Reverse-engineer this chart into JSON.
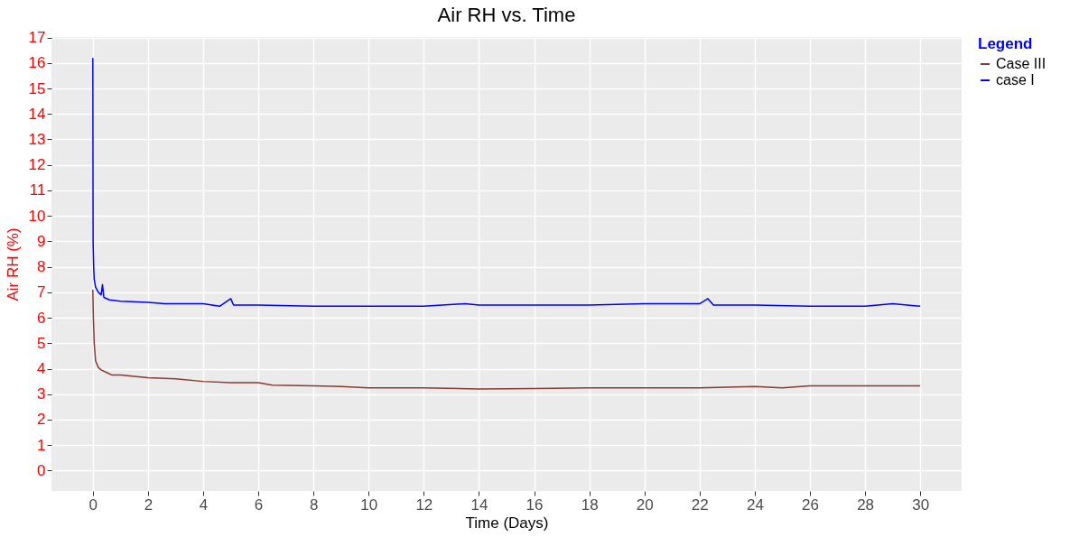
{
  "chart_data": {
    "type": "line",
    "title": "Air RH vs. Time",
    "xlabel": "Time (Days)",
    "ylabel": "Air RH (%)",
    "legend_title": "Legend",
    "xlim": [
      -1.5,
      31.5
    ],
    "xticks": [
      0,
      2,
      4,
      6,
      8,
      10,
      12,
      14,
      16,
      18,
      20,
      22,
      24,
      26,
      28,
      30
    ],
    "ylim": [
      -0.8,
      17.02
    ],
    "yticks": [
      0,
      1,
      2,
      3,
      4,
      5,
      6,
      7,
      8,
      9,
      10,
      11,
      12,
      13,
      14,
      15,
      16,
      17
    ],
    "grid": true,
    "legend": "right",
    "series": [
      {
        "name": "Case III",
        "color": "#8b3a2f",
        "x": [
          0,
          0.02,
          0.05,
          0.1,
          0.2,
          0.3,
          0.5,
          0.7,
          1,
          2,
          3,
          4,
          5,
          6,
          6.5,
          8,
          9,
          10,
          12,
          14,
          16,
          18,
          20,
          22,
          24,
          25,
          26,
          28,
          30
        ],
        "values": [
          7.1,
          6.0,
          5.0,
          4.3,
          4.05,
          3.95,
          3.85,
          3.75,
          3.75,
          3.65,
          3.6,
          3.5,
          3.45,
          3.45,
          3.35,
          3.33,
          3.3,
          3.25,
          3.25,
          3.2,
          3.22,
          3.25,
          3.25,
          3.25,
          3.3,
          3.25,
          3.33,
          3.33,
          3.33
        ]
      },
      {
        "name": "case I",
        "color": "#0000ff",
        "x": [
          0,
          0.01,
          0.03,
          0.05,
          0.1,
          0.2,
          0.3,
          0.35,
          0.4,
          0.6,
          1,
          2,
          2.6,
          4,
          4.6,
          5,
          5.1,
          6,
          8,
          10,
          12,
          13.5,
          14,
          16,
          18,
          20,
          22,
          22.3,
          22.5,
          24,
          26,
          28,
          29,
          30
        ],
        "values": [
          16.2,
          9.0,
          8.0,
          7.5,
          7.2,
          7.0,
          6.9,
          7.3,
          6.8,
          6.7,
          6.65,
          6.6,
          6.55,
          6.55,
          6.45,
          6.75,
          6.5,
          6.5,
          6.45,
          6.45,
          6.45,
          6.55,
          6.5,
          6.5,
          6.5,
          6.55,
          6.55,
          6.75,
          6.5,
          6.5,
          6.45,
          6.45,
          6.55,
          6.45
        ]
      }
    ]
  }
}
